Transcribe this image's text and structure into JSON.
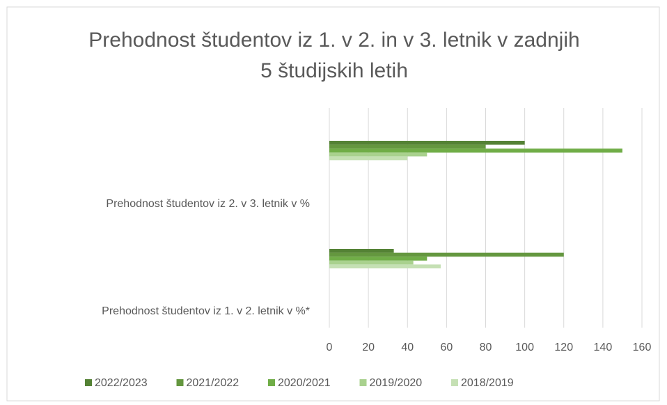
{
  "chart_data": {
    "type": "bar",
    "orientation": "horizontal",
    "title": "Prehodnost študentov iz 1. v 2. in v 3. letnik v zadnjih 5 študijskih letih",
    "categories": [
      "Prehodnost študentov iz 1. v 2. letnik v %*",
      "Prehodnost študentov iz 2. v 3. letnik  v %"
    ],
    "series": [
      {
        "name": "2022/2023",
        "color": "#548235",
        "values": [
          33,
          100
        ]
      },
      {
        "name": "2021/2022",
        "color": "#64973f",
        "values": [
          120,
          80
        ]
      },
      {
        "name": "2020/2021",
        "color": "#70ad47",
        "values": [
          50,
          150
        ]
      },
      {
        "name": "2019/2020",
        "color": "#a9d18e",
        "values": [
          43,
          50
        ]
      },
      {
        "name": "2018/2019",
        "color": "#c5e0b4",
        "values": [
          57,
          40
        ]
      }
    ],
    "xlim": [
      0,
      160
    ],
    "xticks": [
      0,
      20,
      40,
      60,
      80,
      100,
      120,
      140,
      160
    ],
    "grid": true,
    "legend": "bottom"
  }
}
